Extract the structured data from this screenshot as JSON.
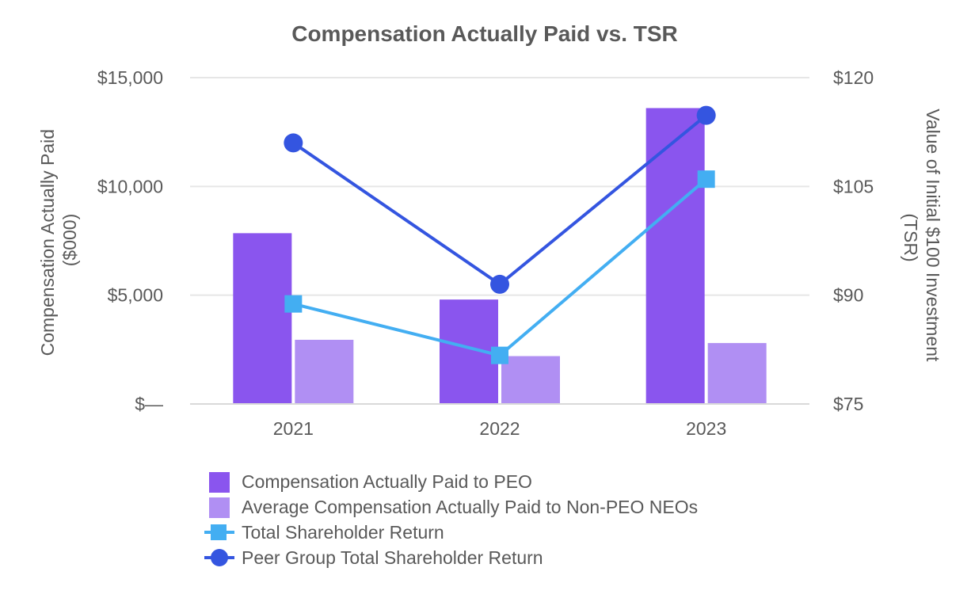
{
  "chart_data": {
    "type": "bar",
    "title": "Compensation Actually Paid vs. TSR",
    "categories": [
      "2021",
      "2022",
      "2023"
    ],
    "ylabel": [
      "Compensation Actually Paid",
      "($000)"
    ],
    "y2label": [
      "Value of Initial $100 Investment",
      "(TSR)"
    ],
    "ylim": [
      0,
      15000
    ],
    "y2lim": [
      75,
      120
    ],
    "yticks": [
      {
        "value": 0,
        "label": "$—"
      },
      {
        "value": 5000,
        "label": "$5,000"
      },
      {
        "value": 10000,
        "label": "$10,000"
      },
      {
        "value": 15000,
        "label": "$15,000"
      }
    ],
    "y2ticks": [
      {
        "value": 75,
        "label": "$75"
      },
      {
        "value": 90,
        "label": "$90"
      },
      {
        "value": 105,
        "label": "$105"
      },
      {
        "value": 120,
        "label": "$120"
      }
    ],
    "series": [
      {
        "name": "Compensation Actually Paid to PEO",
        "kind": "bar",
        "axis": "left",
        "color": "#8a55ee",
        "values": [
          7850,
          4800,
          13600
        ]
      },
      {
        "name": "Average Compensation Actually Paid to Non-PEO NEOs",
        "kind": "bar",
        "axis": "left",
        "color": "#b08ff3",
        "values": [
          2950,
          2200,
          2800
        ]
      },
      {
        "name": "Total Shareholder Return",
        "kind": "line",
        "marker": "square",
        "axis": "right",
        "color": "#43aef2",
        "values": [
          88.8,
          81.7,
          106
        ]
      },
      {
        "name": "Peer Group Total Shareholder Return",
        "kind": "line",
        "marker": "circle",
        "axis": "right",
        "color": "#3455e0",
        "values": [
          111,
          91.5,
          114.8
        ]
      }
    ]
  }
}
